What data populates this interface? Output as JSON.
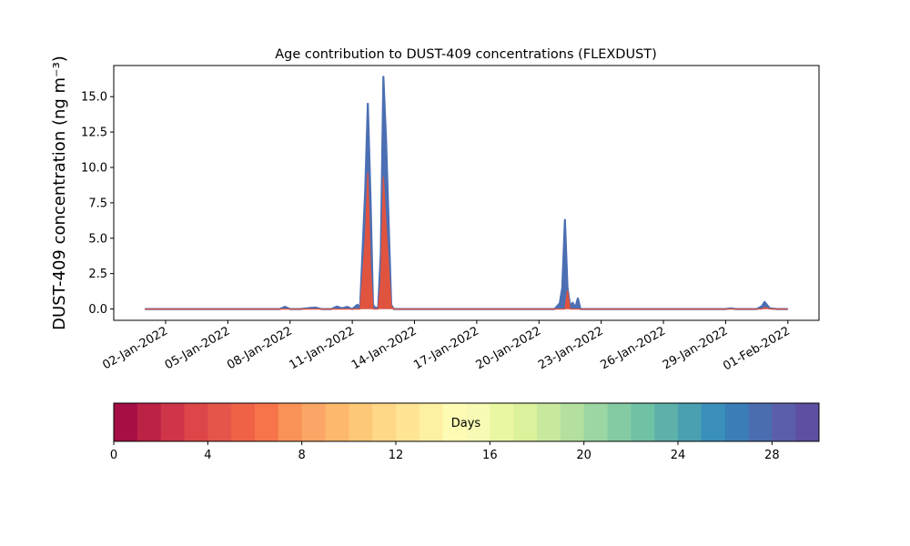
{
  "chart_data": [
    {
      "type": "area",
      "title": "Age contribution to DUST-409 concentrations (FLEXDUST)",
      "ylabel": "DUST-409 concentration (ng m⁻³)",
      "xlabel": "",
      "xlim": [
        "2021-12-30T12:00",
        "2022-02-02T12:00"
      ],
      "ylim": [
        -0.8,
        17.2
      ],
      "grid": false,
      "y_ticks": [
        "0.0",
        "2.5",
        "5.0",
        "7.5",
        "10.0",
        "12.5",
        "15.0"
      ],
      "x_ticks": [
        {
          "date": "2022-01-02",
          "label": "02-Jan-2022"
        },
        {
          "date": "2022-01-05",
          "label": "05-Jan-2022"
        },
        {
          "date": "2022-01-08",
          "label": "08-Jan-2022"
        },
        {
          "date": "2022-01-11",
          "label": "11-Jan-2022"
        },
        {
          "date": "2022-01-14",
          "label": "14-Jan-2022"
        },
        {
          "date": "2022-01-17",
          "label": "17-Jan-2022"
        },
        {
          "date": "2022-01-20",
          "label": "20-Jan-2022"
        },
        {
          "date": "2022-01-23",
          "label": "23-Jan-2022"
        },
        {
          "date": "2022-01-26",
          "label": "26-Jan-2022"
        },
        {
          "date": "2022-01-29",
          "label": "29-Jan-2022"
        },
        {
          "date": "2022-02-01",
          "label": "01-Feb-2022"
        }
      ],
      "series": [
        {
          "kind": "total",
          "color": "#4c6fb3",
          "x": [
            "2022-01-01",
            "2022-01-07T12:00",
            "2022-01-07T18:00",
            "2022-01-08",
            "2022-01-08T12:00",
            "2022-01-09",
            "2022-01-09T06:00",
            "2022-01-09T12:00",
            "2022-01-10",
            "2022-01-10T06:00",
            "2022-01-10T12:00",
            "2022-01-10T18:00",
            "2022-01-11",
            "2022-01-11T06:00",
            "2022-01-11T09:00",
            "2022-01-11T15:00",
            "2022-01-11T18:00",
            "2022-01-11T21:00",
            "2022-01-12",
            "2022-01-12T03:00",
            "2022-01-12T06:00",
            "2022-01-12T09:00",
            "2022-01-12T12:00",
            "2022-01-12T15:00",
            "2022-01-12T21:00",
            "2022-01-13",
            "2022-01-13T03:00",
            "2022-01-13T06:00",
            "2022-01-13T09:00",
            "2022-01-13T12:00",
            "2022-01-13T18:00",
            "2022-01-20T18:00",
            "2022-01-21",
            "2022-01-21T03:00",
            "2022-01-21T06:00",
            "2022-01-21T09:00",
            "2022-01-21T12:00",
            "2022-01-21T15:00",
            "2022-01-21T18:00",
            "2022-01-21T21:00",
            "2022-01-22",
            "2022-01-22T03:00",
            "2022-01-22T06:00",
            "2022-01-22T09:00",
            "2022-01-22T15:00",
            "2022-01-29",
            "2022-01-29T06:00",
            "2022-01-29T12:00",
            "2022-01-30T12:00",
            "2022-01-30T18:00",
            "2022-01-30T21:00",
            "2022-01-31T03:00",
            "2022-01-31T12:00",
            "2022-02-01T00:00"
          ],
          "values": [
            0,
            0,
            0.15,
            0,
            0,
            0.08,
            0.1,
            0,
            0,
            0.18,
            0.05,
            0.15,
            0,
            0.3,
            0.1,
            8.5,
            14.5,
            8.0,
            0.3,
            0.05,
            0.15,
            4.0,
            16.4,
            12.0,
            0.3,
            0,
            0,
            0,
            0,
            0,
            0,
            0,
            0.4,
            1.5,
            6.3,
            1.5,
            0.2,
            0.45,
            0.1,
            0.75,
            0,
            0,
            0,
            0,
            0,
            0,
            0.05,
            0,
            0,
            0.2,
            0.5,
            0.05,
            0,
            0
          ]
        },
        {
          "kind": "young",
          "color": "#e0533f",
          "x": [
            "2022-01-01",
            "2022-01-11T09:00",
            "2022-01-11T15:00",
            "2022-01-11T18:00",
            "2022-01-11T21:00",
            "2022-01-12",
            "2022-01-12T06:00",
            "2022-01-12T09:00",
            "2022-01-12T12:00",
            "2022-01-12T15:00",
            "2022-01-12T21:00",
            "2022-01-13",
            "2022-01-21T06:00",
            "2022-01-21T09:00",
            "2022-01-21T12:00",
            "2022-01-22",
            "2022-01-30T18:00",
            "2022-01-30T21:00",
            "2022-01-31T03:00",
            "2022-02-01T00:00"
          ],
          "values": [
            0,
            0,
            5.0,
            9.6,
            3.0,
            0,
            0,
            2.0,
            9.3,
            6.0,
            0.2,
            0,
            0,
            1.3,
            0,
            0,
            0,
            0.12,
            0,
            0
          ]
        }
      ]
    },
    {
      "type": "colorbar",
      "label": "Days",
      "range": [
        0,
        30
      ],
      "bins": 30,
      "tick_labels": [
        "0",
        "4",
        "8",
        "12",
        "16",
        "20",
        "24",
        "28"
      ],
      "colors": [
        "#a50f45",
        "#bb2246",
        "#ce3548",
        "#dc4649",
        "#e5554a",
        "#ef6245",
        "#f7744a",
        "#f99257",
        "#fba666",
        "#fdb86c",
        "#fdc877",
        "#fed886",
        "#fee493",
        "#fef0a2",
        "#fefcb4",
        "#f6fab4",
        "#eaf7a2",
        "#dbf19b",
        "#c8e99d",
        "#b3e09f",
        "#9bd6a3",
        "#84cba4",
        "#70c2a5",
        "#5db1aa",
        "#4aa0b1",
        "#3a8fbb",
        "#3a7eb8",
        "#4a6db0",
        "#5b5eaa",
        "#5e4fa2"
      ]
    }
  ]
}
